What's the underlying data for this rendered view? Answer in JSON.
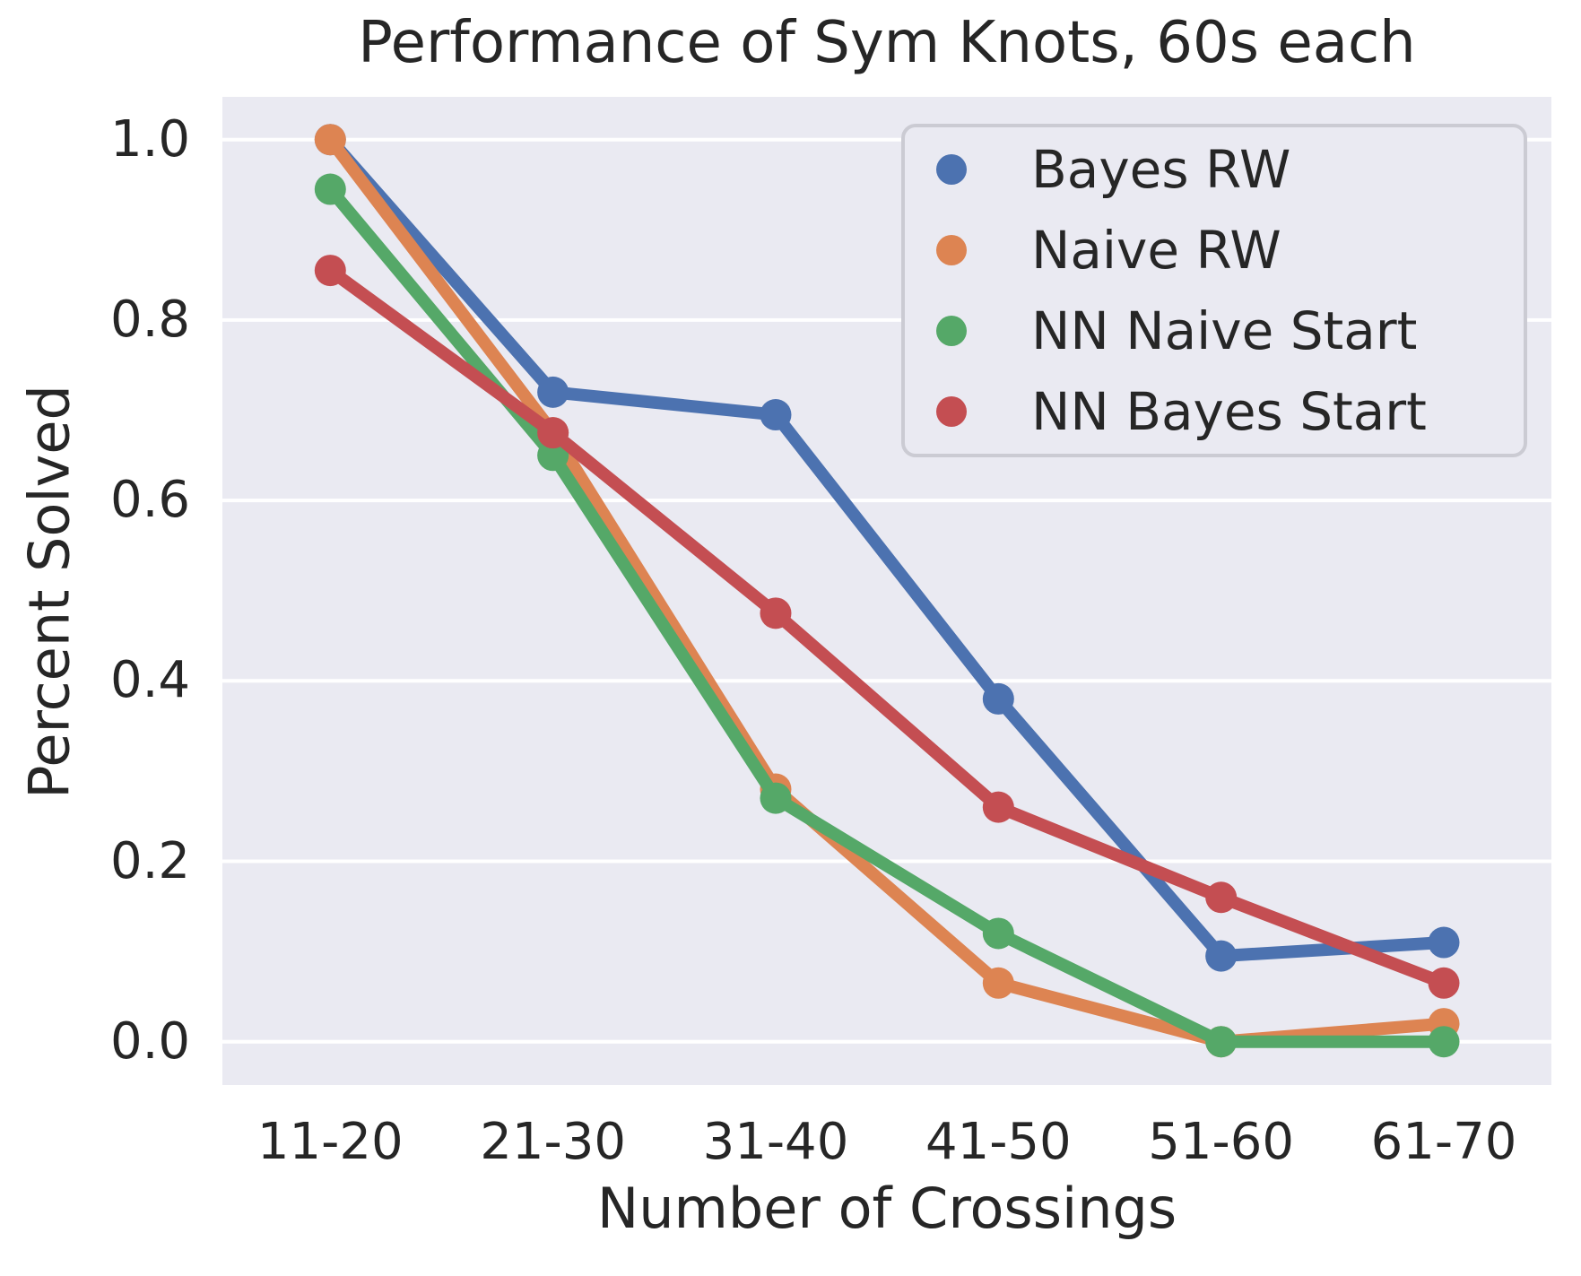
{
  "figure": {
    "title": "Performance of Sym Knots, 60s each",
    "plot_bg_color": "#EAEAF2",
    "gridline_color": "#ffffff",
    "text_color": "#262626",
    "legend_border_color": "#CBCBD3"
  },
  "chart_data": {
    "type": "line",
    "title": "Performance of Sym Knots, 60s each",
    "xlabel": "Number of Crossings",
    "ylabel": "Percent Solved",
    "categories": [
      "11-20",
      "21-30",
      "31-40",
      "41-50",
      "51-60",
      "61-70"
    ],
    "yticks": [
      "1.0",
      "0.8",
      "0.6",
      "0.4",
      "0.2",
      "0.0"
    ],
    "ylim": [
      -0.048,
      1.048
    ],
    "grid": true,
    "legend_position": "upper right",
    "marker_style": "circle",
    "series": [
      {
        "name": "Bayes RW",
        "color": "#4C72B0",
        "values": [
          1.0,
          0.72,
          0.695,
          0.38,
          0.095,
          0.11
        ]
      },
      {
        "name": "Naive RW",
        "color": "#DD8452",
        "values": [
          1.0,
          0.675,
          0.28,
          0.065,
          0.0,
          0.02
        ]
      },
      {
        "name": "NN Naive Start",
        "color": "#55A868",
        "values": [
          0.945,
          0.65,
          0.27,
          0.12,
          0.0,
          0.0
        ]
      },
      {
        "name": "NN Bayes Start",
        "color": "#C44E52",
        "values": [
          0.855,
          0.675,
          0.475,
          0.26,
          0.16,
          0.065
        ]
      }
    ]
  }
}
